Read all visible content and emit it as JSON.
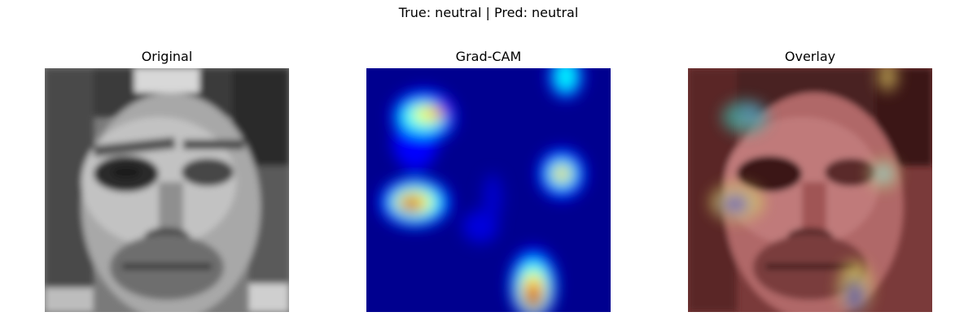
{
  "figure": {
    "suptitle": "True: neutral | Pred: neutral"
  },
  "panels": [
    {
      "title": "Original"
    },
    {
      "title": "Grad-CAM"
    },
    {
      "title": "Overlay"
    }
  ],
  "colors": {
    "background": "#ffffff",
    "jet_low": "#00008f",
    "jet_mid_blue": "#0000ff",
    "jet_cyan": "#00ffff",
    "jet_yellow": "#ffff00",
    "jet_high": "#800000"
  }
}
